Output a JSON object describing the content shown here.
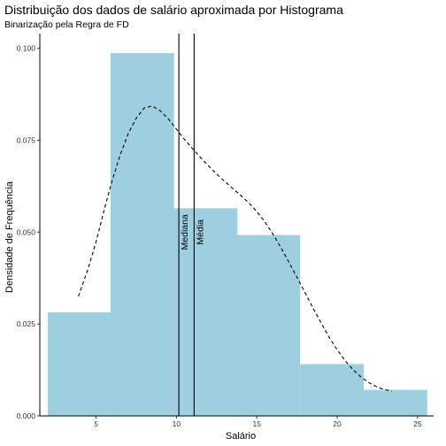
{
  "chart_data": {
    "type": "bar",
    "title": "Distribuição dos dados de salário aproximada por Histograma",
    "subtitle": "Binarização pela Regra de FD",
    "xlabel": "Salário",
    "ylabel": "Densidade de Frequência",
    "xlim": [
      1.5,
      26
    ],
    "ylim": [
      0,
      0.104
    ],
    "x_ticks": [
      5,
      10,
      15,
      20,
      25
    ],
    "y_ticks": [
      0.0,
      0.025,
      0.05,
      0.075,
      0.1
    ],
    "x_tick_labels": [
      "5",
      "10",
      "15",
      "20",
      "25"
    ],
    "y_tick_labels": [
      "0.000",
      "0.025",
      "0.050",
      "0.075",
      "0.100"
    ],
    "bar_color": "#9ecfe0",
    "bins": [
      {
        "x0": 2.0,
        "x1": 5.9,
        "density": 0.0282
      },
      {
        "x0": 5.9,
        "x1": 9.85,
        "density": 0.0987
      },
      {
        "x0": 9.85,
        "x1": 13.8,
        "density": 0.0565
      },
      {
        "x0": 13.8,
        "x1": 17.7,
        "density": 0.0492
      },
      {
        "x0": 17.7,
        "x1": 21.65,
        "density": 0.0141
      },
      {
        "x0": 21.65,
        "x1": 25.6,
        "density": 0.0071
      }
    ],
    "density_curve": {
      "x": [
        3.9,
        4.5,
        5.0,
        5.5,
        6.0,
        6.5,
        7.0,
        7.5,
        8.0,
        8.5,
        9.0,
        9.5,
        10.0,
        10.5,
        11.0,
        11.5,
        12.0,
        12.5,
        13.0,
        13.5,
        14.0,
        14.5,
        15.0,
        15.5,
        16.0,
        16.5,
        17.0,
        17.5,
        18.0,
        18.5,
        19.0,
        19.5,
        20.0,
        20.5,
        21.0,
        21.5,
        22.0,
        22.5,
        23.0,
        23.4
      ],
      "y": [
        0.0325,
        0.04,
        0.0474,
        0.056,
        0.064,
        0.071,
        0.0768,
        0.081,
        0.0838,
        0.0843,
        0.083,
        0.0808,
        0.078,
        0.0752,
        0.0727,
        0.0703,
        0.068,
        0.0658,
        0.0638,
        0.0619,
        0.06,
        0.058,
        0.0556,
        0.0528,
        0.0495,
        0.0458,
        0.0418,
        0.0377,
        0.0335,
        0.0293,
        0.0253,
        0.0214,
        0.018,
        0.015,
        0.0125,
        0.0105,
        0.009,
        0.0078,
        0.0071,
        0.0068
      ]
    },
    "vlines": [
      {
        "label": "Mediana",
        "x": 10.15
      },
      {
        "label": "Média",
        "x": 11.1
      }
    ],
    "grid": false,
    "legend": "none"
  }
}
